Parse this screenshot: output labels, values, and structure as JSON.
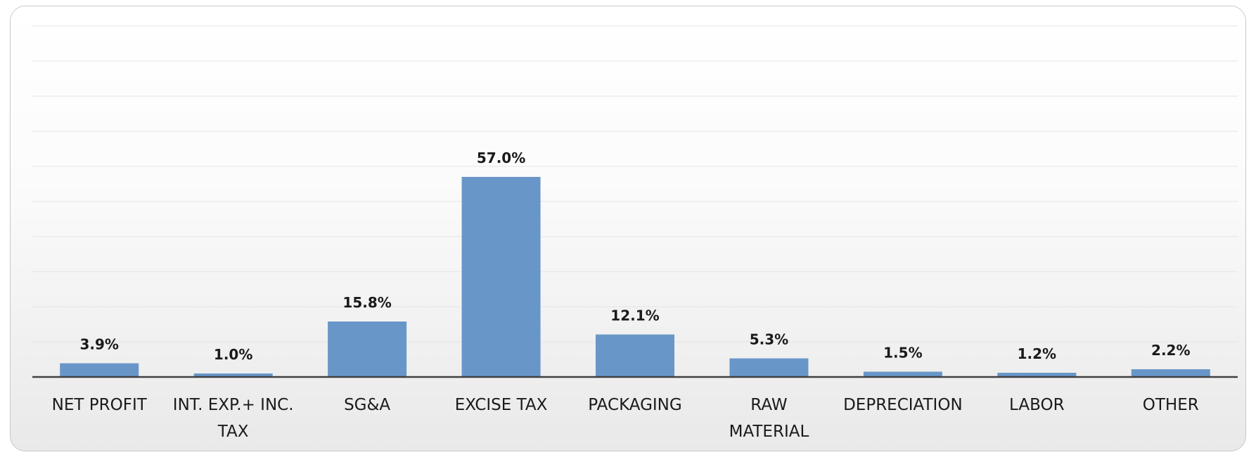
{
  "chart_data": {
    "type": "bar",
    "title": "",
    "xlabel": "",
    "ylabel": "",
    "categories": [
      "NET PROFIT",
      "INT. EXP.+ INC. TAX",
      "SG&A",
      "EXCISE TAX",
      "PACKAGING",
      "RAW MATERIAL",
      "DEPRECIATION",
      "LABOR",
      "OTHER"
    ],
    "category_lines": [
      [
        "NET PROFIT"
      ],
      [
        "INT. EXP.+ INC.",
        "TAX"
      ],
      [
        "SG&A"
      ],
      [
        "EXCISE TAX"
      ],
      [
        "PACKAGING"
      ],
      [
        "RAW",
        "MATERIAL"
      ],
      [
        "DEPRECIATION"
      ],
      [
        "LABOR"
      ],
      [
        "OTHER"
      ]
    ],
    "values": [
      3.9,
      1.0,
      15.8,
      57.0,
      12.1,
      5.3,
      1.5,
      1.2,
      2.2
    ],
    "data_labels": [
      "3.9%",
      "1.0%",
      "15.8%",
      "57.0%",
      "12.1%",
      "5.3%",
      "1.5%",
      "1.2%",
      "2.2%"
    ],
    "ylim": [
      0,
      100
    ],
    "grid": true,
    "legend": "none",
    "bar_color": "#6896c8",
    "grid_color": "#e4e4e4",
    "axis_color": "#404040"
  }
}
